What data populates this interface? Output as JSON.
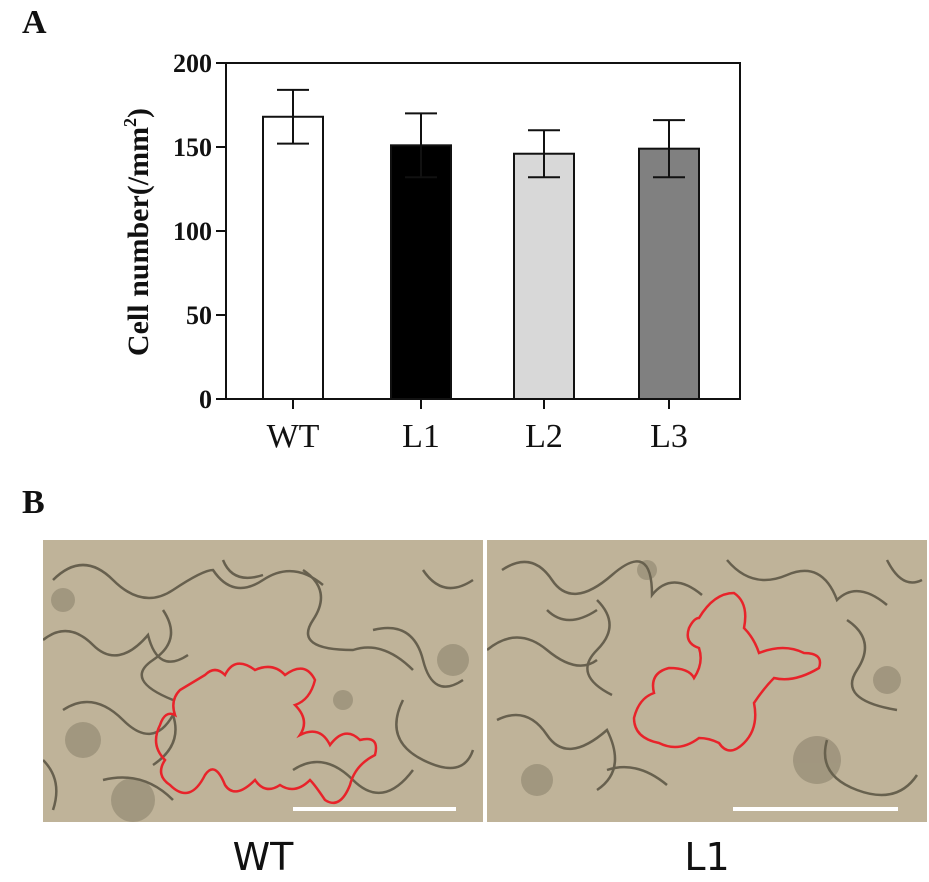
{
  "panel_a_label": "A",
  "panel_b_label": "B",
  "chart_data": {
    "type": "bar",
    "title": "",
    "xlabel": "",
    "ylabel": "Cell number(/mm",
    "ylabel_superscript": "2",
    "ylabel_close": ")",
    "categories": [
      "WT",
      "L1",
      "L2",
      "L3"
    ],
    "values": [
      168,
      151,
      146,
      149
    ],
    "errors": [
      16,
      19,
      14,
      17
    ],
    "bar_colors": [
      "#ffffff",
      "#000000",
      "#d8d8d8",
      "#808080"
    ],
    "ylim": [
      0,
      200
    ],
    "yticks": [
      "0",
      "50",
      "100",
      "150",
      "200"
    ],
    "grid": false,
    "legend": "none"
  },
  "images": {
    "left_caption": "WT",
    "right_caption": "L1",
    "background_color": "#bfb399",
    "outline_color": "#e8232a",
    "scale_bar_color": "#ffffff"
  }
}
